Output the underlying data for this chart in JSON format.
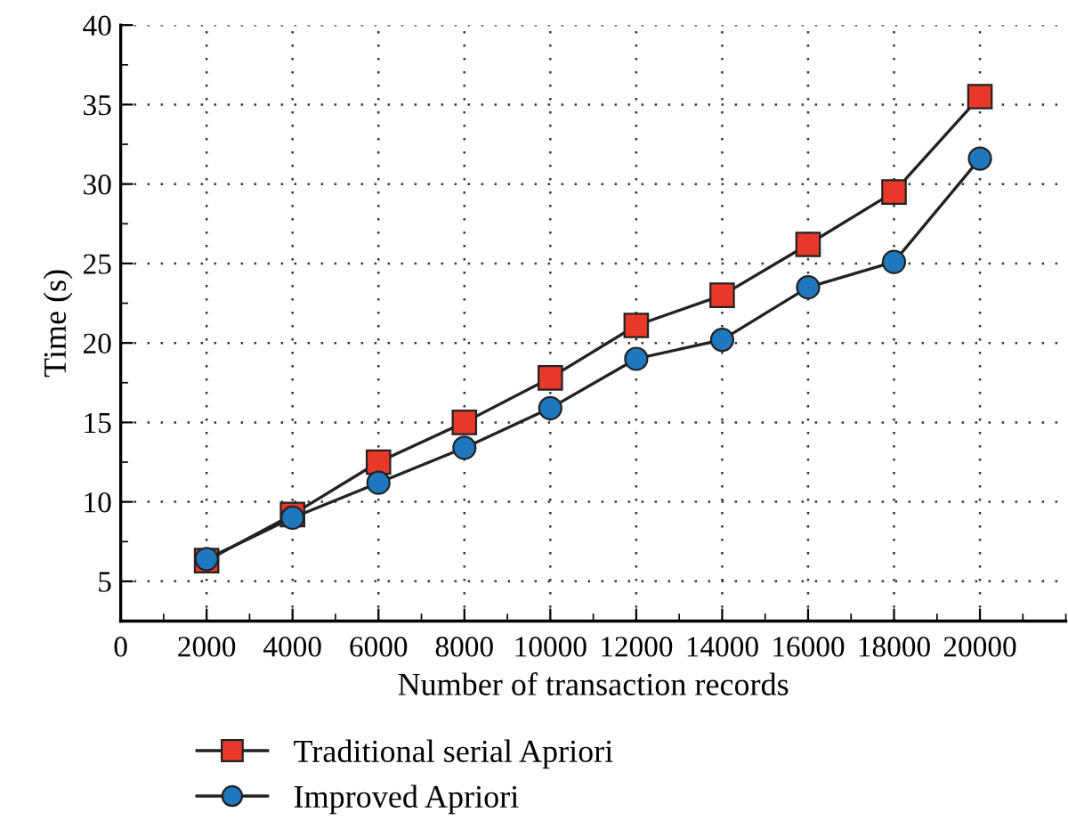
{
  "chart_data": {
    "type": "line",
    "xlabel": "Number of transaction records",
    "ylabel": "Time (s)",
    "x": [
      2000,
      4000,
      6000,
      8000,
      10000,
      12000,
      14000,
      16000,
      18000,
      20000
    ],
    "series": [
      {
        "name": "Traditional serial Apriori",
        "color": "#e8382a",
        "marker": "square",
        "values": [
          6.3,
          9.2,
          12.5,
          15.0,
          17.8,
          21.1,
          23.0,
          26.2,
          29.5,
          35.5
        ]
      },
      {
        "name": "Improved Apriori",
        "color": "#1f78be",
        "marker": "circle",
        "values": [
          6.4,
          9.0,
          11.2,
          13.4,
          15.9,
          19.0,
          20.2,
          23.5,
          25.1,
          31.6
        ]
      }
    ],
    "xlim": [
      0,
      22000
    ],
    "xticks": [
      0,
      2000,
      4000,
      6000,
      8000,
      10000,
      12000,
      14000,
      16000,
      18000,
      20000
    ],
    "ylim": [
      2.5,
      40
    ],
    "yticks": [
      5,
      10,
      15,
      20,
      25,
      30,
      35,
      40
    ],
    "grid": true,
    "legend": "bottom left",
    "line_style": "solid"
  }
}
